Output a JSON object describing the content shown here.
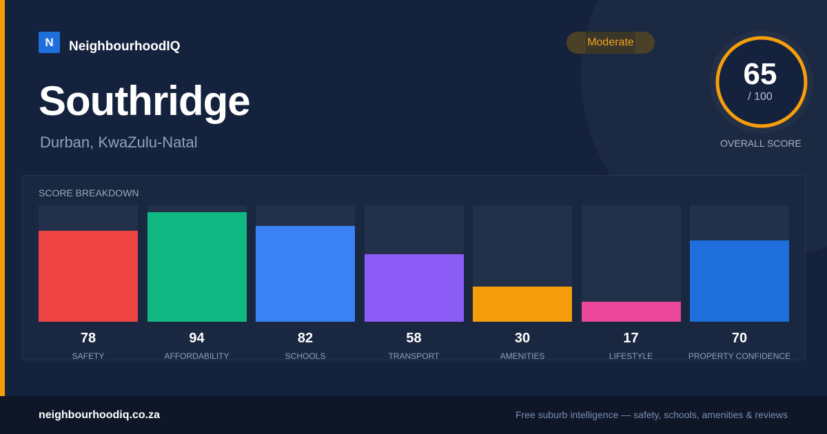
{
  "brand": {
    "logo_letter": "N",
    "name": "NeighbourhoodIQ"
  },
  "suburb": {
    "name": "Southridge",
    "location": "Durban, KwaZulu-Natal"
  },
  "rating": {
    "label": "Moderate",
    "color": "#f5a524"
  },
  "overall": {
    "score": 65,
    "score_text": "65",
    "out_of": "/ 100",
    "max": 100,
    "label": "OVERALL SCORE",
    "ring_color": "#f59e0b"
  },
  "breakdown": {
    "title": "SCORE BREAKDOWN",
    "items": [
      {
        "label": "SAFETY",
        "value": 78,
        "color": "#ef4444"
      },
      {
        "label": "AFFORDABILITY",
        "value": 94,
        "color": "#10b981"
      },
      {
        "label": "SCHOOLS",
        "value": 82,
        "color": "#3b82f6"
      },
      {
        "label": "TRANSPORT",
        "value": 58,
        "color": "#8b5cf6"
      },
      {
        "label": "AMENITIES",
        "value": 30,
        "color": "#f59e0b"
      },
      {
        "label": "LIFESTYLE",
        "value": 17,
        "color": "#ec4899"
      },
      {
        "label": "PROPERTY CONFIDENCE",
        "value": 70,
        "color": "#1e6fdc"
      }
    ]
  },
  "chart_data": {
    "type": "bar",
    "categories": [
      "SAFETY",
      "AFFORDABILITY",
      "SCHOOLS",
      "TRANSPORT",
      "AMENITIES",
      "LIFESTYLE",
      "PROPERTY CONFIDENCE"
    ],
    "values": [
      78,
      94,
      82,
      58,
      30,
      17,
      70
    ],
    "title": "SCORE BREAKDOWN",
    "ylim": [
      0,
      100
    ]
  },
  "footer": {
    "url": "neighbourhoodiq.co.za",
    "tagline": "Free suburb intelligence — safety, schools, amenities & reviews"
  }
}
